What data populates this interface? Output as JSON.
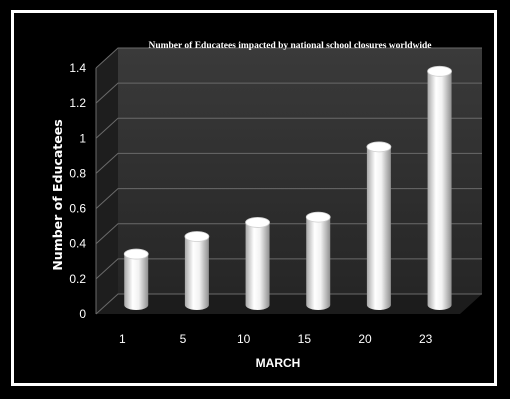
{
  "chart_data": {
    "type": "bar",
    "title": "Number of Educatees impacted by national school closures worldwide",
    "xlabel": "MARCH",
    "ylabel": "Number of Educatees",
    "categories": [
      "1",
      "5",
      "10",
      "15",
      "20",
      "23"
    ],
    "values": [
      0.29,
      0.39,
      0.47,
      0.5,
      0.9,
      1.33
    ],
    "ylim": [
      0,
      1.4
    ],
    "yticks": [
      "0",
      "0.2",
      "0.4",
      "0.6",
      "0.8",
      "1",
      "1.2",
      "1.4"
    ],
    "grid": true,
    "legend": "none",
    "colors": {
      "background": "#000000",
      "plot_wall": "#2e2e2e",
      "floor": "#1c1c1c",
      "gridline": "#6a6a6a",
      "bar": "#ffffff",
      "bar_shade": "#9a9a9a",
      "text": "#ffffff"
    }
  }
}
